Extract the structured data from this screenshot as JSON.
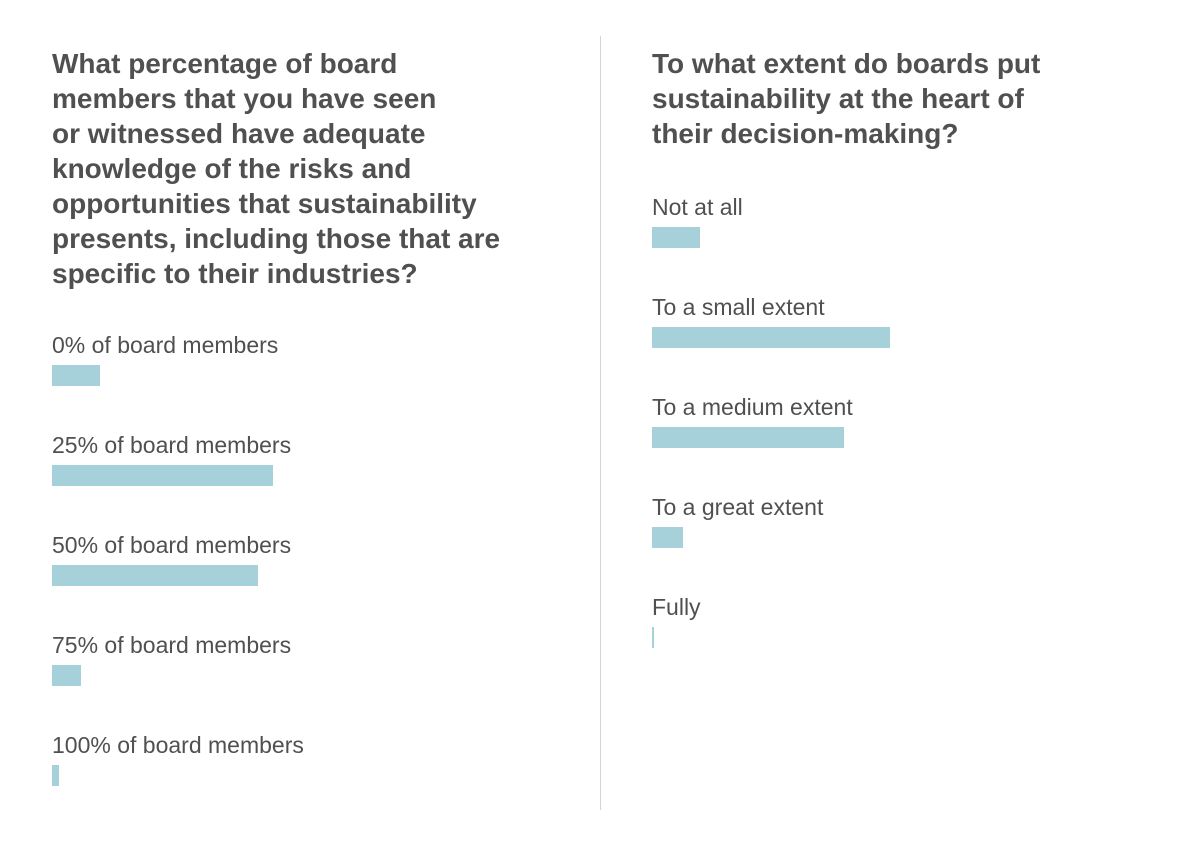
{
  "chart_data": [
    {
      "type": "bar",
      "orientation": "horizontal",
      "title": "What percentage of board\nmembers that you have seen\nor witnessed have adequate\nknowledge of the risks and\nopportunities that sustainability\npresents, including those that are\nspecific to their industries?",
      "categories": [
        "0% of board members",
        "25% of board members",
        "50% of board members",
        "75% of board members",
        "100% of board members"
      ],
      "values": [
        10,
        46,
        43,
        6,
        1.5
      ],
      "xlim": [
        0,
        100
      ],
      "bar_color": "#a6d0da",
      "grid": false
    },
    {
      "type": "bar",
      "orientation": "horizontal",
      "title": "To what extent do boards put\nsustainability at the heart of\ntheir decision-making?",
      "categories": [
        "Not at all",
        "To a small extent",
        "To a medium extent",
        "To a great extent",
        "Fully"
      ],
      "values": [
        10,
        49.5,
        40,
        6.5,
        0.5
      ],
      "xlim": [
        0,
        100
      ],
      "bar_color": "#a6d0da",
      "grid": false
    }
  ]
}
